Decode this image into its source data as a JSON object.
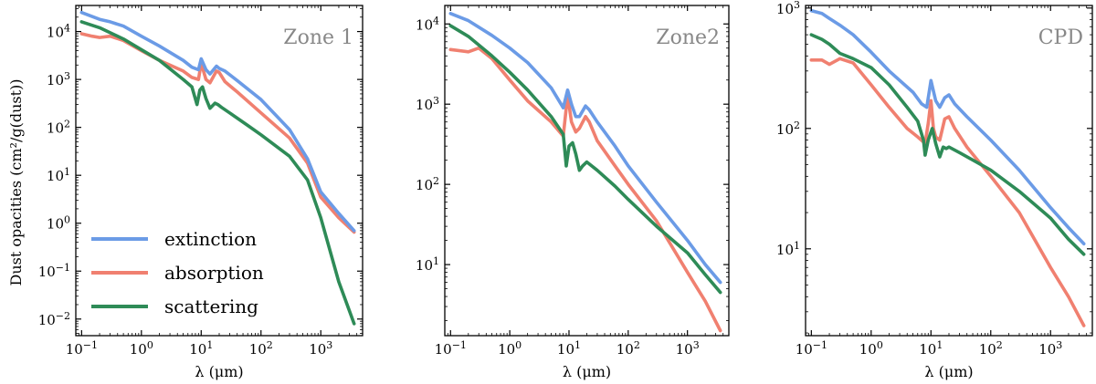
{
  "colors": {
    "extinction": "#6b9be6",
    "absorption": "#f08070",
    "scattering": "#2e8b57",
    "zone_label": "#888888"
  },
  "legend": {
    "items": [
      {
        "key": "extinction",
        "label": "extinction"
      },
      {
        "key": "absorption",
        "label": "absorption"
      },
      {
        "key": "scattering",
        "label": "scattering"
      }
    ]
  },
  "chart_data": [
    {
      "type": "line",
      "title": "Zone 1",
      "xlabel": "λ (μm)",
      "ylabel": "Dust opacities (cm²/g(dust))",
      "xscale": "log",
      "yscale": "log",
      "xlim": [
        0.08,
        5000
      ],
      "ylim": [
        0.0045,
        35000
      ],
      "xticks": [
        {
          "v": 0.1,
          "base": "10",
          "exp": "−1"
        },
        {
          "v": 1,
          "base": "10",
          "exp": "0"
        },
        {
          "v": 10,
          "base": "10",
          "exp": "1"
        },
        {
          "v": 100,
          "base": "10",
          "exp": "2"
        },
        {
          "v": 1000,
          "base": "10",
          "exp": "3"
        }
      ],
      "yticks": [
        {
          "v": 0.01,
          "base": "10",
          "exp": "−2"
        },
        {
          "v": 0.1,
          "base": "10",
          "exp": "−1"
        },
        {
          "v": 1,
          "base": "10",
          "exp": "0"
        },
        {
          "v": 10,
          "base": "10",
          "exp": "1"
        },
        {
          "v": 100,
          "base": "10",
          "exp": "2"
        },
        {
          "v": 1000,
          "base": "10",
          "exp": "3"
        },
        {
          "v": 10000,
          "base": "10",
          "exp": "4"
        }
      ],
      "legend": "lower-left",
      "series": [
        {
          "name": "extinction",
          "x": [
            0.1,
            0.2,
            0.3,
            0.5,
            1,
            2,
            5,
            7,
            9,
            10,
            12,
            14,
            18,
            20,
            25,
            40,
            100,
            300,
            600,
            1000,
            2000,
            3600
          ],
          "y": [
            25000,
            18000,
            16000,
            13000,
            8000,
            5000,
            2500,
            1800,
            1600,
            2700,
            1600,
            1300,
            1900,
            1700,
            1500,
            950,
            380,
            90,
            22,
            4.5,
            1.6,
            0.7
          ]
        },
        {
          "name": "absorption",
          "x": [
            0.1,
            0.15,
            0.2,
            0.3,
            0.5,
            1,
            2,
            5,
            7,
            9,
            10,
            12,
            14,
            18,
            20,
            25,
            40,
            100,
            300,
            600,
            1000,
            2000,
            3600
          ],
          "y": [
            9000,
            8000,
            7500,
            8000,
            6500,
            4000,
            2500,
            1500,
            1100,
            1000,
            2200,
            1000,
            850,
            1500,
            1400,
            900,
            550,
            200,
            60,
            18,
            3.5,
            1.3,
            0.65
          ]
        },
        {
          "name": "scattering",
          "x": [
            0.1,
            0.2,
            0.5,
            1,
            2,
            5,
            7,
            8.5,
            9.5,
            10.5,
            12,
            14,
            17,
            19,
            22,
            30,
            60,
            100,
            300,
            600,
            1000,
            2000,
            3600
          ],
          "y": [
            16000,
            12000,
            7000,
            4200,
            2500,
            1000,
            700,
            300,
            600,
            700,
            400,
            250,
            320,
            300,
            260,
            200,
            110,
            70,
            25,
            8,
            1.3,
            0.06,
            0.008
          ]
        }
      ]
    },
    {
      "type": "line",
      "title": "Zone2",
      "xlabel": "λ (μm)",
      "ylabel": "",
      "xscale": "log",
      "yscale": "log",
      "xlim": [
        0.08,
        5000
      ],
      "ylim": [
        1.3,
        17000
      ],
      "xticks": [
        {
          "v": 0.1,
          "base": "10",
          "exp": "−1"
        },
        {
          "v": 1,
          "base": "10",
          "exp": "0"
        },
        {
          "v": 10,
          "base": "10",
          "exp": "1"
        },
        {
          "v": 100,
          "base": "10",
          "exp": "2"
        },
        {
          "v": 1000,
          "base": "10",
          "exp": "3"
        }
      ],
      "yticks": [
        {
          "v": 10,
          "base": "10",
          "exp": "1"
        },
        {
          "v": 100,
          "base": "10",
          "exp": "2"
        },
        {
          "v": 1000,
          "base": "10",
          "exp": "3"
        },
        {
          "v": 10000,
          "base": "10",
          "exp": "4"
        }
      ],
      "series": [
        {
          "name": "extinction",
          "x": [
            0.1,
            0.2,
            0.5,
            1,
            2,
            5,
            8,
            9.5,
            11,
            13,
            15,
            19,
            22,
            30,
            60,
            100,
            300,
            1000,
            2000,
            3600
          ],
          "y": [
            13500,
            11000,
            7200,
            5000,
            3300,
            1600,
            900,
            1500,
            1000,
            700,
            700,
            950,
            850,
            600,
            300,
            170,
            60,
            20,
            10,
            6
          ]
        },
        {
          "name": "absorption",
          "x": [
            0.1,
            0.2,
            0.3,
            0.5,
            1,
            2,
            5,
            8,
            9.5,
            11,
            13,
            15,
            19,
            22,
            30,
            60,
            100,
            300,
            1000,
            2000,
            3600
          ],
          "y": [
            4800,
            4500,
            5000,
            3700,
            2000,
            1100,
            600,
            400,
            1300,
            600,
            450,
            500,
            700,
            600,
            350,
            170,
            100,
            35,
            8,
            3.5,
            1.5
          ]
        },
        {
          "name": "scattering",
          "x": [
            0.1,
            0.2,
            0.5,
            1,
            2,
            5,
            8,
            9,
            10,
            11.5,
            13,
            15,
            17,
            20,
            30,
            60,
            100,
            300,
            1000,
            2000,
            3600
          ],
          "y": [
            9500,
            7000,
            4000,
            2500,
            1500,
            700,
            420,
            170,
            300,
            330,
            240,
            150,
            170,
            190,
            150,
            95,
            65,
            30,
            14,
            7.5,
            4.5
          ]
        }
      ]
    },
    {
      "type": "line",
      "title": "CPD",
      "xlabel": "λ (μm)",
      "ylabel": "",
      "xscale": "log",
      "yscale": "log",
      "xlim": [
        0.08,
        5000
      ],
      "ylim": [
        1.9,
        1050
      ],
      "xticks": [
        {
          "v": 0.1,
          "base": "10",
          "exp": "−1"
        },
        {
          "v": 1,
          "base": "10",
          "exp": "0"
        },
        {
          "v": 10,
          "base": "10",
          "exp": "1"
        },
        {
          "v": 100,
          "base": "10",
          "exp": "2"
        },
        {
          "v": 1000,
          "base": "10",
          "exp": "3"
        }
      ],
      "yticks": [
        {
          "v": 10,
          "base": "10",
          "exp": "1"
        },
        {
          "v": 100,
          "base": "10",
          "exp": "2"
        },
        {
          "v": 1000,
          "base": "10",
          "exp": "3"
        }
      ],
      "series": [
        {
          "name": "extinction",
          "x": [
            0.1,
            0.15,
            0.2,
            0.3,
            0.5,
            1,
            2,
            5,
            7,
            8.5,
            10,
            12,
            14,
            17,
            20,
            25,
            40,
            100,
            300,
            1000,
            2000,
            3600
          ],
          "y": [
            950,
            900,
            820,
            720,
            600,
            430,
            300,
            200,
            160,
            150,
            250,
            170,
            150,
            180,
            190,
            160,
            125,
            80,
            45,
            22,
            15,
            11
          ]
        },
        {
          "name": "absorption",
          "x": [
            0.1,
            0.15,
            0.2,
            0.3,
            0.5,
            1,
            2,
            4,
            6,
            8,
            9,
            10,
            11,
            12,
            14,
            17,
            20,
            25,
            40,
            100,
            300,
            1000,
            2000,
            3600
          ],
          "y": [
            370,
            370,
            340,
            380,
            350,
            230,
            150,
            100,
            85,
            75,
            110,
            170,
            100,
            85,
            80,
            120,
            125,
            100,
            70,
            40,
            20,
            7,
            4,
            2.3
          ]
        },
        {
          "name": "scattering",
          "x": [
            0.1,
            0.15,
            0.2,
            0.3,
            0.5,
            1,
            2,
            4,
            6,
            7.5,
            8,
            9,
            10.5,
            12,
            14,
            16,
            18,
            20,
            30,
            60,
            100,
            300,
            1000,
            2000,
            3600
          ],
          "y": [
            600,
            550,
            500,
            420,
            380,
            320,
            230,
            150,
            115,
            80,
            60,
            80,
            100,
            75,
            58,
            70,
            68,
            70,
            63,
            52,
            45,
            30,
            18,
            12,
            9
          ]
        }
      ]
    }
  ]
}
